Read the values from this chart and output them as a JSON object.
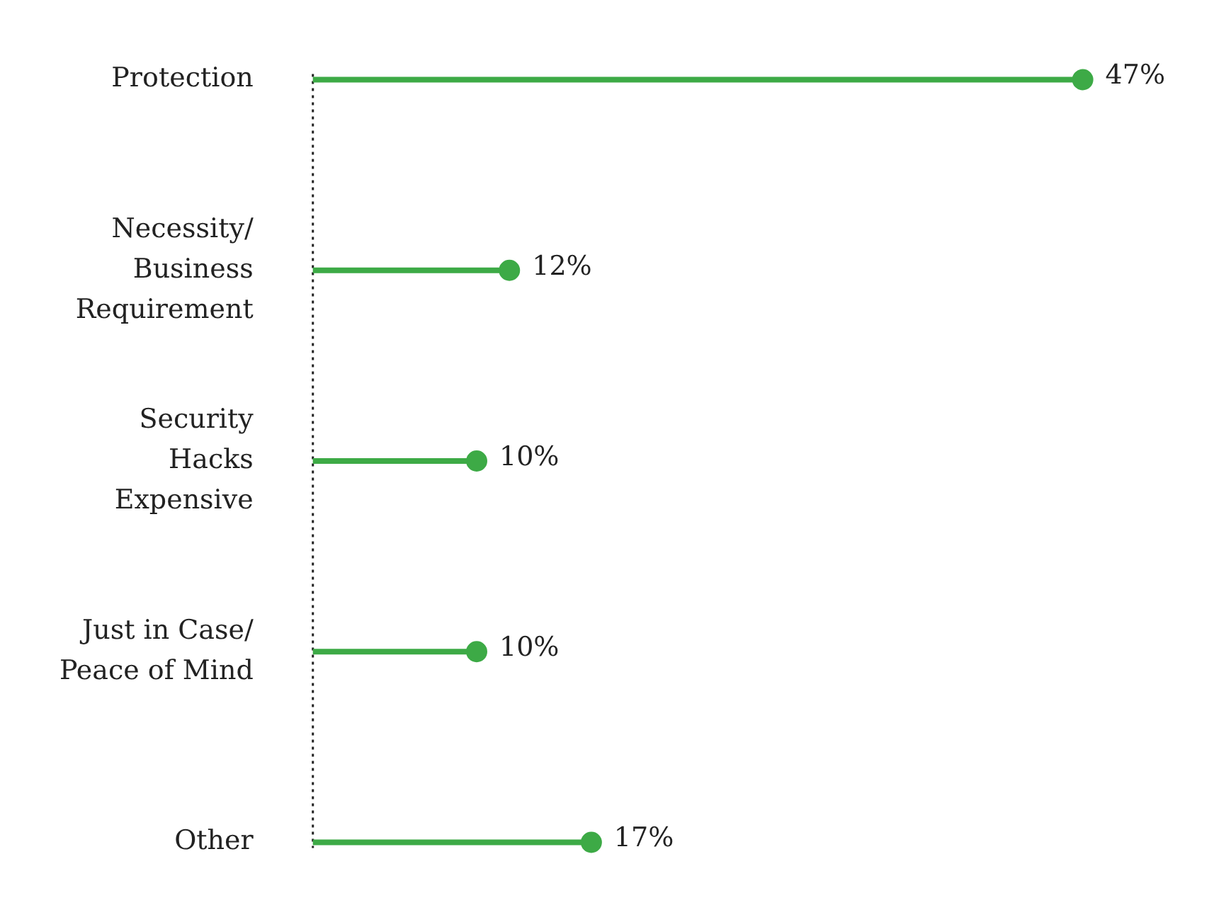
{
  "chart_data": {
    "type": "lollipop",
    "orientation": "horizontal",
    "categories": [
      "Protection",
      "Necessity/\nBusiness\nRequirement",
      "Security\nHacks\nExpensive",
      "Just in Case/\nPeace of Mind",
      "Other"
    ],
    "values": [
      47,
      12,
      10,
      10,
      17
    ],
    "value_labels": [
      "47%",
      "12%",
      "10%",
      "10%",
      "17%"
    ],
    "color": "#3daa46",
    "marker": "circle",
    "tick_labels": "y"
  }
}
